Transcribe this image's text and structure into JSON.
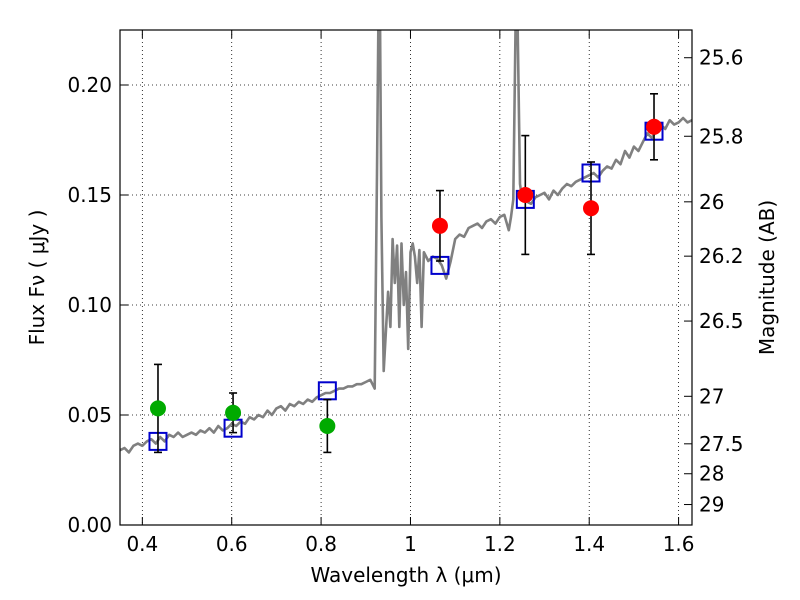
{
  "chart_data": {
    "type": "scatter",
    "xlabel": "Wavelength  λ (μm)",
    "ylabel": "Flux  Fν  ( μJy )",
    "y2label": "Magnitude (AB)",
    "xlim": [
      0.35,
      1.63
    ],
    "ylim": [
      0.0,
      0.225
    ],
    "grid": true,
    "x_ticks": [
      0.4,
      0.6,
      0.8,
      1.0,
      1.2,
      1.4,
      1.6
    ],
    "x_tick_labels": [
      "0.4",
      "0.6",
      "0.8",
      "1",
      "1.2",
      "1.4",
      "1.6"
    ],
    "y_ticks": [
      0.0,
      0.05,
      0.1,
      0.15,
      0.2
    ],
    "y_tick_labels": [
      "0.00",
      "0.05",
      "0.10",
      "0.15",
      "0.20"
    ],
    "y2_ticks": [
      {
        "label": "25.6",
        "flux": 0.2124
      },
      {
        "label": "25.8",
        "flux": 0.1767
      },
      {
        "label": "26",
        "flux": 0.1469
      },
      {
        "label": "26.2",
        "flux": 0.1222
      },
      {
        "label": "26.5",
        "flux": 0.0927
      },
      {
        "label": "27",
        "flux": 0.0585
      },
      {
        "label": "27.5",
        "flux": 0.0369
      },
      {
        "label": "28",
        "flux": 0.0233
      },
      {
        "label": "29",
        "flux": 0.0093
      }
    ],
    "series": [
      {
        "kind": "line",
        "color": "#808080",
        "x": [
          0.35,
          0.36,
          0.37,
          0.38,
          0.39,
          0.4,
          0.41,
          0.42,
          0.43,
          0.44,
          0.45,
          0.46,
          0.47,
          0.48,
          0.49,
          0.5,
          0.51,
          0.52,
          0.53,
          0.54,
          0.55,
          0.56,
          0.57,
          0.58,
          0.59,
          0.6,
          0.61,
          0.62,
          0.63,
          0.64,
          0.65,
          0.66,
          0.67,
          0.68,
          0.69,
          0.7,
          0.71,
          0.72,
          0.73,
          0.74,
          0.75,
          0.76,
          0.77,
          0.78,
          0.79,
          0.8,
          0.81,
          0.82,
          0.83,
          0.84,
          0.85,
          0.86,
          0.87,
          0.88,
          0.89,
          0.9,
          0.91,
          0.92,
          0.925,
          0.928,
          0.932,
          0.935,
          0.94,
          0.95,
          0.955,
          0.96,
          0.965,
          0.97,
          0.975,
          0.98,
          0.985,
          0.99,
          0.995,
          1.0,
          1.005,
          1.01,
          1.015,
          1.02,
          1.025,
          1.03,
          1.04,
          1.05,
          1.06,
          1.07,
          1.08,
          1.09,
          1.1,
          1.11,
          1.12,
          1.13,
          1.14,
          1.15,
          1.16,
          1.17,
          1.18,
          1.19,
          1.2,
          1.21,
          1.22,
          1.225,
          1.23,
          1.235,
          1.24,
          1.245,
          1.25,
          1.26,
          1.27,
          1.28,
          1.29,
          1.3,
          1.31,
          1.32,
          1.33,
          1.34,
          1.35,
          1.36,
          1.37,
          1.38,
          1.39,
          1.4,
          1.41,
          1.42,
          1.43,
          1.44,
          1.45,
          1.46,
          1.47,
          1.48,
          1.49,
          1.5,
          1.51,
          1.52,
          1.53,
          1.54,
          1.55,
          1.56,
          1.57,
          1.58,
          1.59,
          1.6,
          1.61,
          1.62,
          1.63
        ],
        "y": [
          0.034,
          0.035,
          0.033,
          0.036,
          0.037,
          0.036,
          0.038,
          0.039,
          0.037,
          0.04,
          0.038,
          0.041,
          0.04,
          0.042,
          0.04,
          0.041,
          0.042,
          0.041,
          0.043,
          0.042,
          0.044,
          0.042,
          0.045,
          0.043,
          0.044,
          0.046,
          0.045,
          0.047,
          0.046,
          0.049,
          0.048,
          0.05,
          0.049,
          0.052,
          0.05,
          0.053,
          0.054,
          0.052,
          0.055,
          0.054,
          0.056,
          0.055,
          0.057,
          0.056,
          0.058,
          0.059,
          0.06,
          0.06,
          0.061,
          0.062,
          0.062,
          0.063,
          0.063,
          0.064,
          0.064,
          0.065,
          0.066,
          0.062,
          0.16,
          0.23,
          0.23,
          0.14,
          0.07,
          0.106,
          0.09,
          0.13,
          0.11,
          0.127,
          0.09,
          0.128,
          0.1,
          0.115,
          0.08,
          0.124,
          0.128,
          0.122,
          0.11,
          0.125,
          0.09,
          0.124,
          0.12,
          0.122,
          0.121,
          0.118,
          0.112,
          0.12,
          0.13,
          0.132,
          0.131,
          0.135,
          0.136,
          0.137,
          0.135,
          0.138,
          0.139,
          0.137,
          0.14,
          0.141,
          0.134,
          0.14,
          0.148,
          0.23,
          0.23,
          0.155,
          0.148,
          0.147,
          0.146,
          0.149,
          0.15,
          0.151,
          0.148,
          0.152,
          0.15,
          0.153,
          0.155,
          0.154,
          0.156,
          0.157,
          0.158,
          0.159,
          0.16,
          0.158,
          0.161,
          0.163,
          0.162,
          0.166,
          0.164,
          0.17,
          0.167,
          0.172,
          0.17,
          0.174,
          0.178,
          0.176,
          0.179,
          0.182,
          0.18,
          0.184,
          0.182,
          0.183,
          0.185,
          0.183,
          0.184
        ]
      },
      {
        "kind": "open-square",
        "color": "#0000cc",
        "x": [
          0.435,
          0.603,
          0.814,
          1.066,
          1.257,
          1.404,
          1.545
        ],
        "y": [
          0.038,
          0.044,
          0.061,
          0.118,
          0.148,
          0.16,
          0.179
        ]
      },
      {
        "kind": "filled-circle",
        "color": "#00aa00",
        "x": [
          0.435,
          0.603,
          0.814
        ],
        "y": [
          0.053,
          0.051,
          0.045
        ],
        "err": [
          0.02,
          0.009,
          0.012
        ]
      },
      {
        "kind": "filled-circle",
        "color": "#ff0000",
        "x": [
          1.066,
          1.257,
          1.404,
          1.545
        ],
        "y": [
          0.136,
          0.15,
          0.144,
          0.181
        ],
        "err": [
          0.016,
          0.027,
          0.021,
          0.015
        ]
      }
    ]
  }
}
